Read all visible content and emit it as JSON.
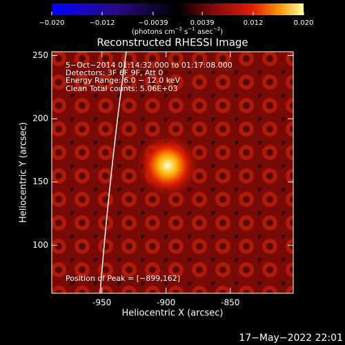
{
  "chart_data": {
    "type": "image",
    "title": "Reconstructed RHESSI Image",
    "x_label": "Heliocentric X (arcsec)",
    "y_label": "Heliocentric Y (arcsec)",
    "xlim": [
      -989,
      -801
    ],
    "xticks": [
      -950,
      -900,
      -850
    ],
    "ylim": [
      62,
      253
    ],
    "yticks": [
      100,
      150,
      200,
      250
    ],
    "colorbar": {
      "lim": [
        -0.02,
        0.02
      ],
      "ticks": [
        {
          "value": -0.02,
          "label": "−0.020"
        },
        {
          "value": -0.012,
          "label": "−0.012"
        },
        {
          "value": -0.0039,
          "label": "−0.0039"
        },
        0.0039,
        0.012,
        {
          "value": 0.02,
          "label": "0.020"
        }
      ],
      "unit_parts": [
        "(photons cm",
        "−2",
        " s",
        "−1",
        " asec",
        "−2",
        ")"
      ]
    },
    "annotations": [
      "5−Oct−2014 01:14:32.000 to 01:17:08.000",
      "Detectors: 3F 6F 9F, Att 0",
      "Energy Range: 6.0 − 12.0 keV",
      "Clean     Total counts: 5.06E+03"
    ],
    "peak_label": "Position of Peak = [−899,162]",
    "timestamp": "17−May−2022 22:01"
  }
}
